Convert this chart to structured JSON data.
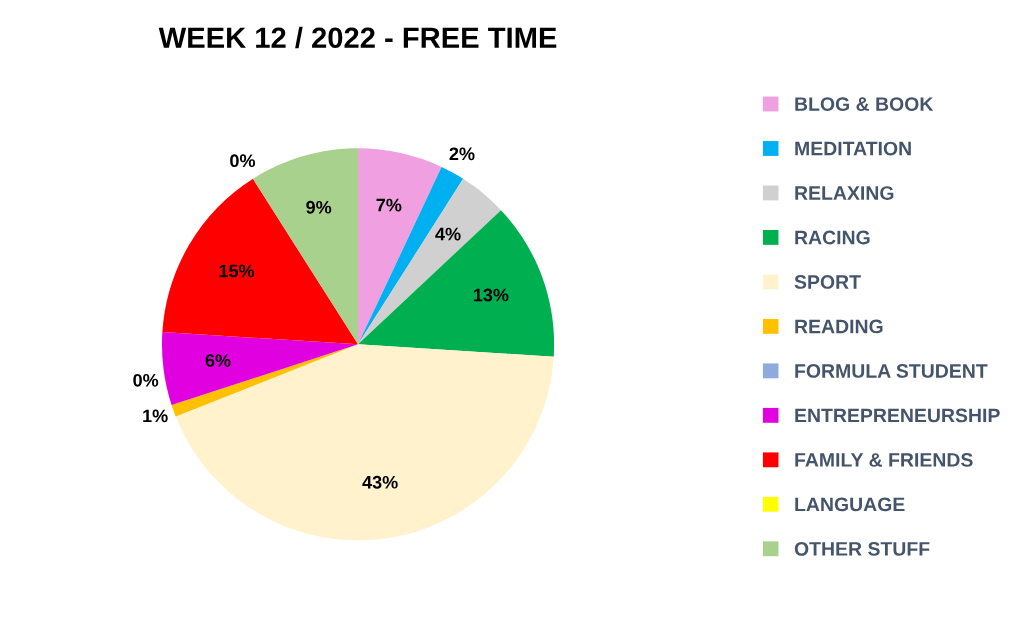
{
  "chart_data": {
    "type": "pie",
    "title": "WEEK 12 / 2022 - FREE TIME",
    "categories": [
      "BLOG & BOOK",
      "MEDITATION",
      "RELAXING",
      "RACING",
      "SPORT",
      "READING",
      "FORMULA STUDENT",
      "ENTREPRENEURSHIP",
      "FAMILY & FRIENDS",
      "LANGUAGE",
      "OTHER STUFF"
    ],
    "values": [
      7,
      2,
      4,
      13,
      43,
      1,
      0,
      6,
      15,
      0,
      9
    ],
    "value_labels": [
      "7%",
      "2%",
      "4%",
      "13%",
      "43%",
      "1%",
      "0%",
      "6%",
      "15%",
      "0%",
      "9%"
    ],
    "colors": [
      "#f0a0e0",
      "#00b0f0",
      "#d0d0d0",
      "#00b050",
      "#fff2cc",
      "#ffc000",
      "#8faadc",
      "#e000e0",
      "#ff0000",
      "#ffff00",
      "#a9d18e"
    ],
    "legend": "right"
  }
}
